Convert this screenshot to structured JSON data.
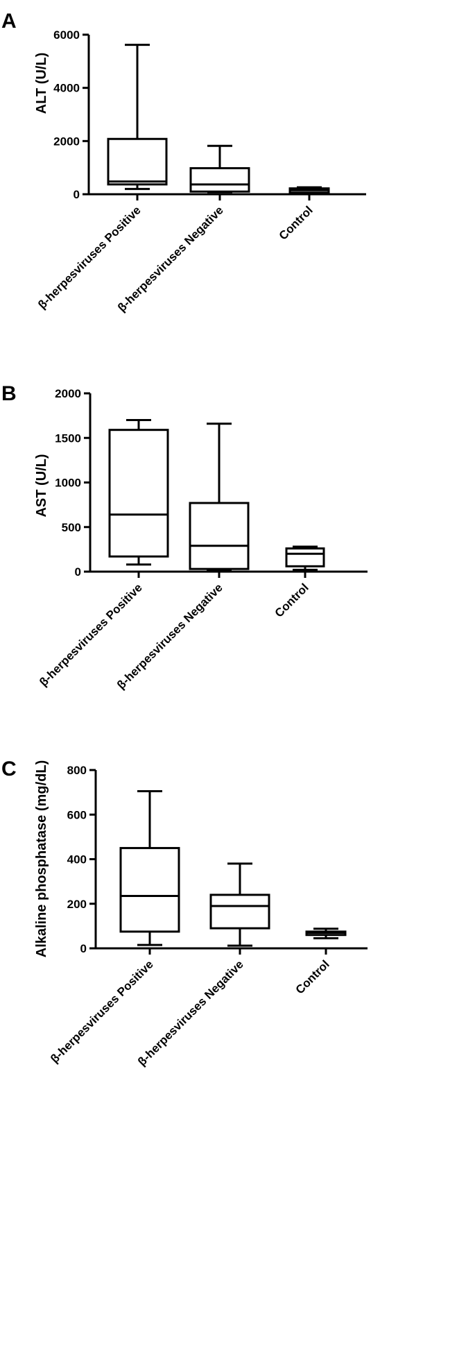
{
  "chart_data": [
    {
      "type": "box",
      "panel": "A",
      "ylabel": "ALT (U/L)",
      "ylim": [
        0,
        6000
      ],
      "yticks": [
        0,
        2000,
        4000,
        6000
      ],
      "categories": [
        "β-herpesviruses Positive",
        "β-herpesviruses Negative",
        "Control"
      ],
      "boxes": [
        {
          "category": "β-herpesviruses Positive",
          "min": 200,
          "q1": 370,
          "median": 480,
          "q3": 2080,
          "max": 5620
        },
        {
          "category": "β-herpesviruses Negative",
          "min": 80,
          "q1": 100,
          "median": 370,
          "q3": 980,
          "max": 1820
        },
        {
          "category": "Control",
          "min": 50,
          "q1": 60,
          "median": 150,
          "q3": 220,
          "max": 260
        }
      ]
    },
    {
      "type": "box",
      "panel": "B",
      "ylabel": "AST (U/L)",
      "ylim": [
        0,
        2000
      ],
      "yticks": [
        0,
        500,
        1000,
        1500,
        2000
      ],
      "categories": [
        "β-herpesviruses Positive",
        "β-herpesviruses Negative",
        "Control"
      ],
      "boxes": [
        {
          "category": "β-herpesviruses Positive",
          "min": 80,
          "q1": 170,
          "median": 640,
          "q3": 1590,
          "max": 1700
        },
        {
          "category": "β-herpesviruses Negative",
          "min": 20,
          "q1": 30,
          "median": 290,
          "q3": 770,
          "max": 1660
        },
        {
          "category": "Control",
          "min": 20,
          "q1": 60,
          "median": 200,
          "q3": 260,
          "max": 280
        }
      ]
    },
    {
      "type": "box",
      "panel": "C",
      "ylabel": "Alkaline phosphatase (mg/dL)",
      "ylim": [
        0,
        800
      ],
      "yticks": [
        0,
        200,
        400,
        600,
        800
      ],
      "categories": [
        "β-herpesviruses Positive",
        "β-herpesviruses Negative",
        "Control"
      ],
      "boxes": [
        {
          "category": "β-herpesviruses Positive",
          "min": 15,
          "q1": 75,
          "median": 235,
          "q3": 450,
          "max": 705
        },
        {
          "category": "β-herpesviruses Negative",
          "min": 12,
          "q1": 90,
          "median": 190,
          "q3": 240,
          "max": 380
        },
        {
          "category": "Control",
          "min": 45,
          "q1": 60,
          "median": 70,
          "q3": 75,
          "max": 88
        }
      ]
    }
  ]
}
